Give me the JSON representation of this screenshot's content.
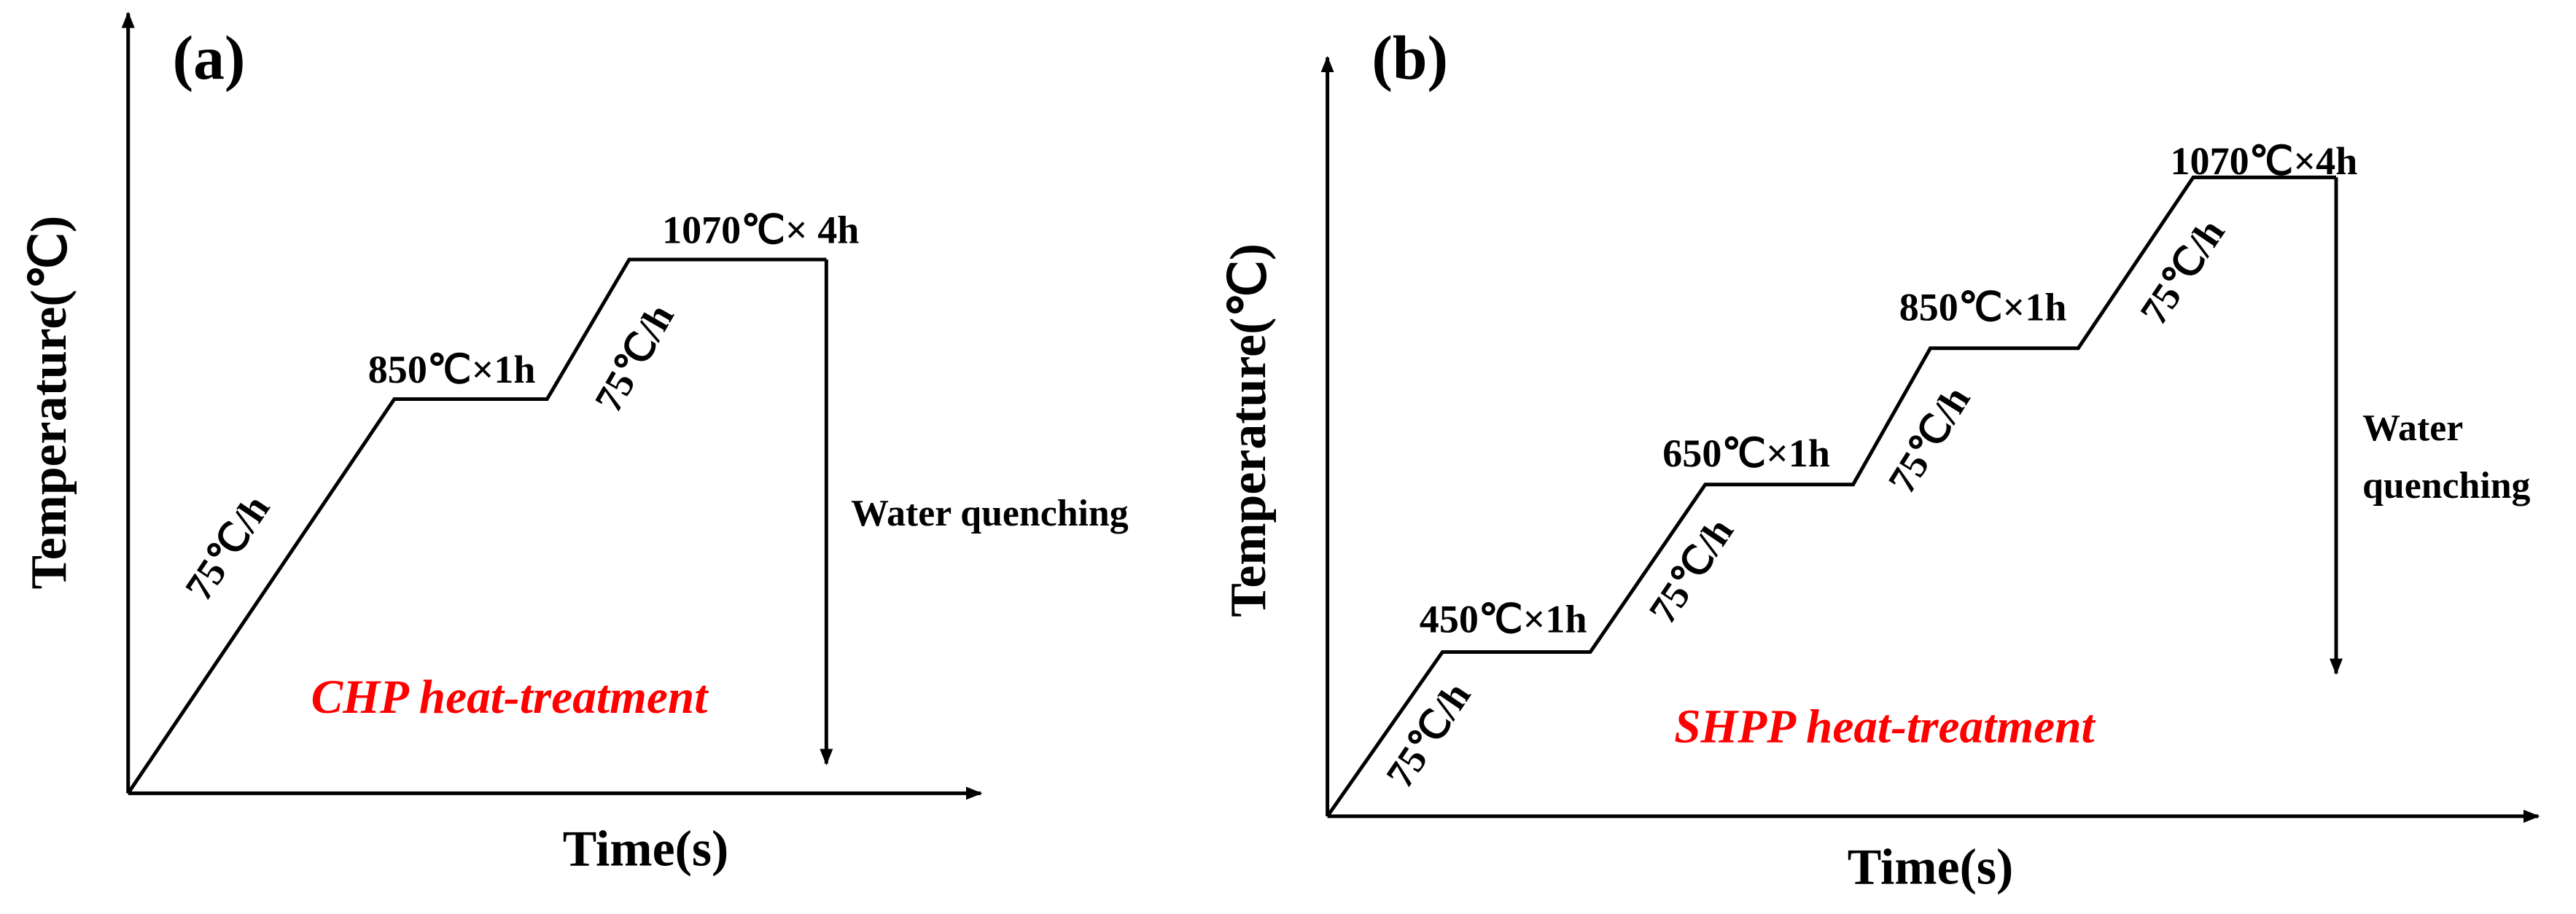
{
  "panels": [
    {
      "label": "(a)",
      "y_axis_label": "Temperature(℃)",
      "x_axis_label": "Time(s)",
      "steps": [
        "850℃×1h",
        "1070℃× 4h"
      ],
      "rates": [
        "75℃/h",
        "75℃/h"
      ],
      "quench_lines": [
        "Water quenching"
      ],
      "title": "CHP heat-treatment"
    },
    {
      "label": "(b)",
      "y_axis_label": "Temperature(℃)",
      "x_axis_label": "Time(s)",
      "steps": [
        "450℃×1h",
        "650℃×1h",
        "850℃×1h",
        "1070℃×4h"
      ],
      "rates": [
        "75℃/h",
        "75℃/h",
        "75℃/h",
        "75℃/h"
      ],
      "quench_lines": [
        "Water",
        "quenching"
      ],
      "title": "SHPP heat-treatment"
    }
  ]
}
